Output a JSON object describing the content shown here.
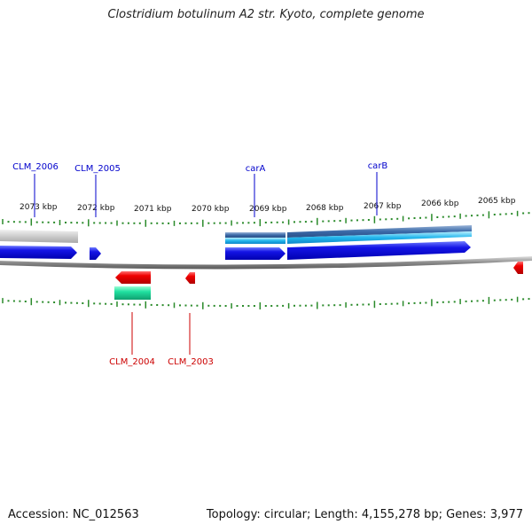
{
  "title": "Clostridium botulinum A2 str. Kyoto, complete genome",
  "footer": {
    "accession": "Accession: NC_012563",
    "summary": "Topology: circular; Length: 4,155,278 bp; Genes: 3,977"
  },
  "ruler": {
    "labels": [
      "2073 kbp",
      "2072 kbp",
      "2071 kbp",
      "2070 kbp",
      "2069 kbp",
      "2068 kbp",
      "2067 kbp",
      "2066 kbp",
      "2065 kbp"
    ]
  },
  "genes_forward": [
    {
      "name": "CLM_2006",
      "color": "#0000cc"
    },
    {
      "name": "CLM_2005",
      "color": "#0000cc"
    },
    {
      "name": "carA",
      "color": "#0000cc"
    },
    {
      "name": "carB",
      "color": "#0000cc"
    }
  ],
  "genes_reverse": [
    {
      "name": "CLM_2004",
      "color": "#cc0000"
    },
    {
      "name": "CLM_2003",
      "color": "#cc0000"
    }
  ],
  "colors": {
    "forward_cds": "#1515e0",
    "reverse_cds": "#ee1111",
    "rna_feature": "#22dd99",
    "forward_feature_band": "#3aaee0",
    "backbone": "#888888",
    "tick": "#2a8a2a"
  }
}
